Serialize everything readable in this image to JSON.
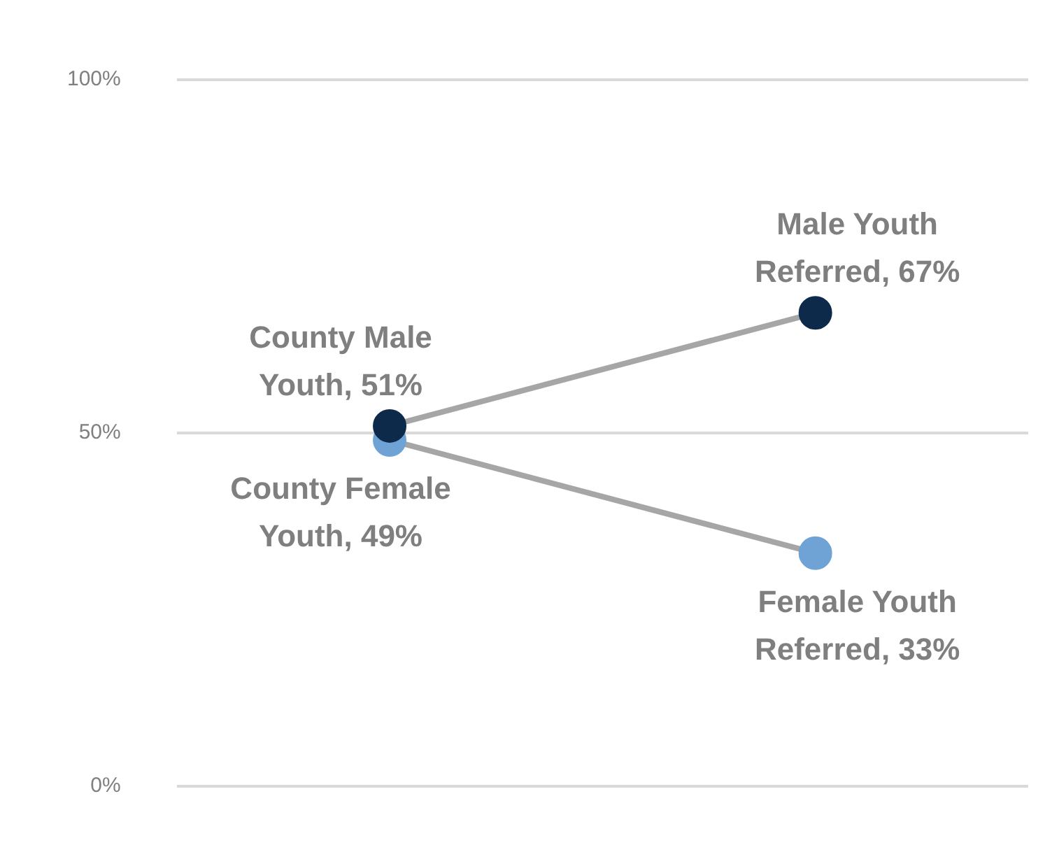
{
  "chart_data": {
    "type": "line",
    "categories": [
      null,
      null
    ],
    "series": [
      {
        "color": "#0d2a4a",
        "values": [
          51,
          67
        ],
        "value_labels": [
          "County Male Youth, 51%",
          "Male Youth Referred, 67%"
        ]
      },
      {
        "color": "#6fa3d6",
        "values": [
          49,
          33
        ],
        "value_labels": [
          "County Female Youth, 49%",
          "Female Youth Referred, 33%"
        ]
      }
    ],
    "ylim": [
      0,
      100
    ],
    "yticks": [
      {
        "value": 0,
        "label": "0%"
      },
      {
        "value": 50,
        "label": "50%"
      },
      {
        "value": 100,
        "label": "100%"
      }
    ],
    "grid": "y",
    "marker": "circle",
    "line_style": "solid"
  }
}
